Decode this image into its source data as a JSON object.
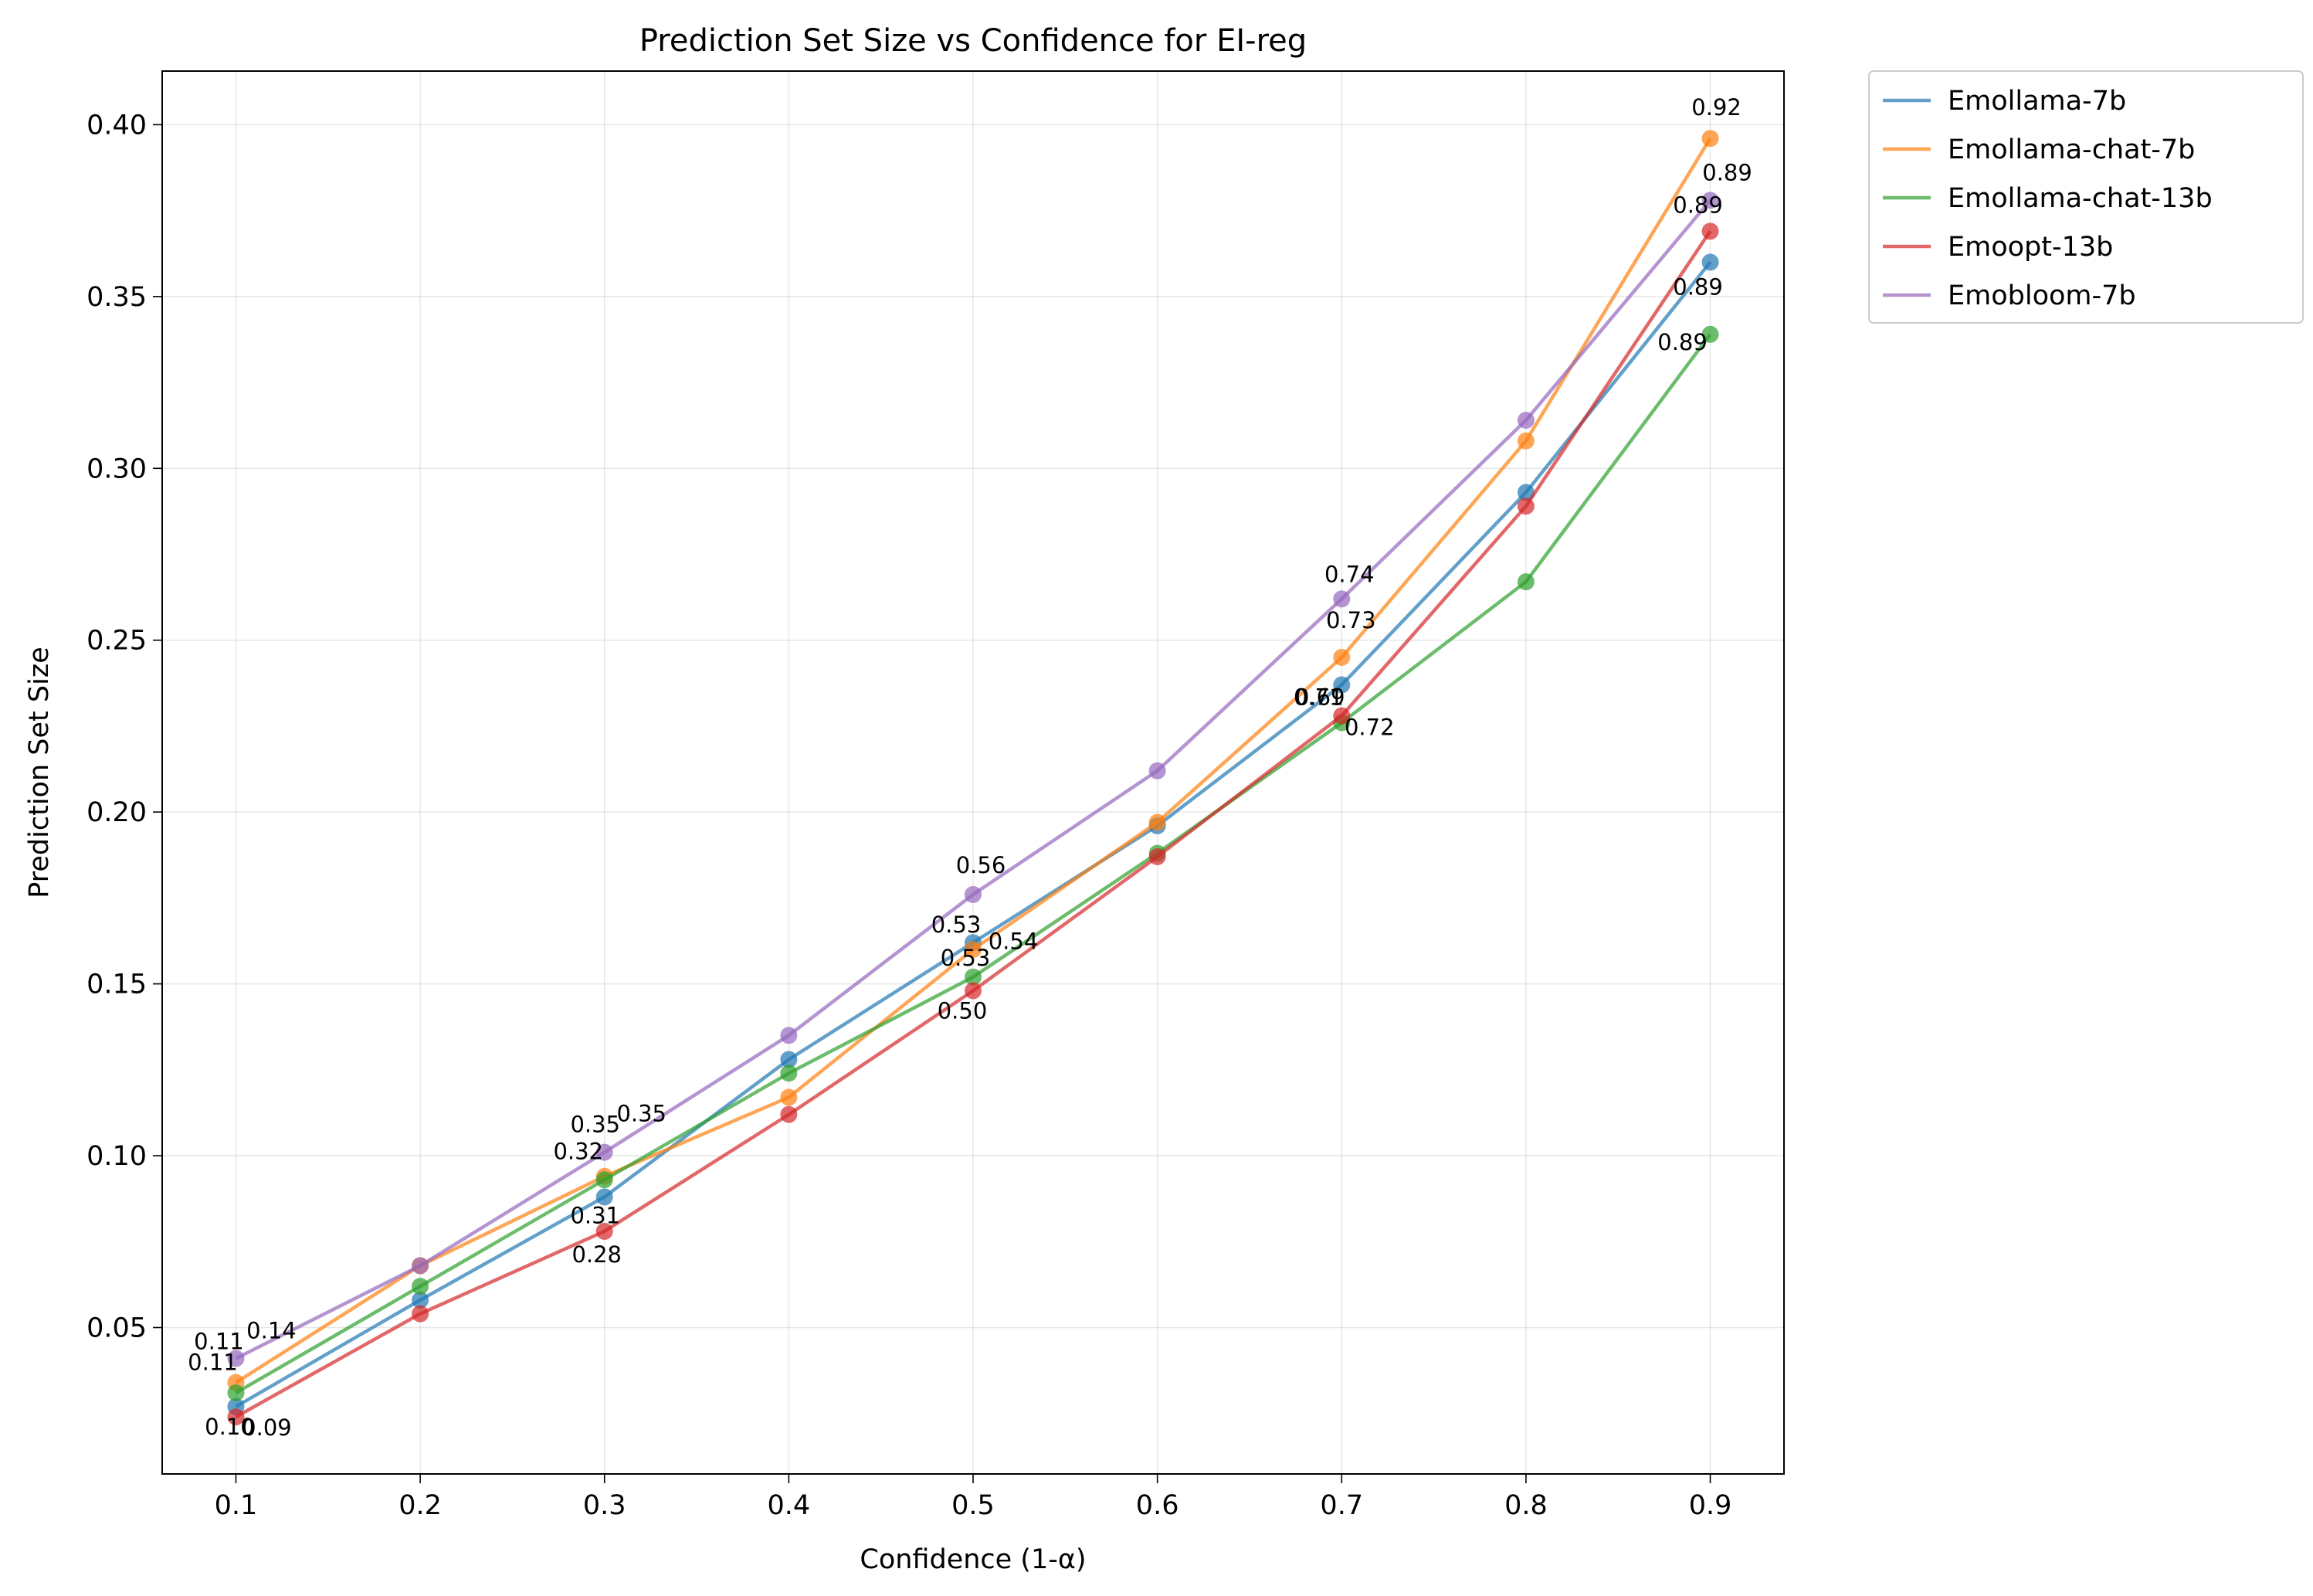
{
  "chart_data": {
    "type": "line",
    "title": "Prediction Set Size vs Confidence for EI-reg",
    "xlabel": "Confidence (1-α)",
    "ylabel": "Prediction Set Size",
    "xlim": [
      0.06,
      0.94
    ],
    "ylim": [
      0.0074,
      0.4156
    ],
    "xticks": [
      0.1,
      0.2,
      0.3,
      0.4,
      0.5,
      0.6,
      0.7,
      0.8,
      0.9
    ],
    "xtick_labels": [
      "0.1",
      "0.2",
      "0.3",
      "0.4",
      "0.5",
      "0.6",
      "0.7",
      "0.8",
      "0.9"
    ],
    "yticks": [
      0.05,
      0.1,
      0.15,
      0.2,
      0.25,
      0.3,
      0.35,
      0.4
    ],
    "ytick_labels": [
      "0.05",
      "0.10",
      "0.15",
      "0.20",
      "0.25",
      "0.30",
      "0.35",
      "0.40"
    ],
    "grid": true,
    "legend_position": "outside-top-right",
    "x": [
      0.1,
      0.2,
      0.3,
      0.4,
      0.5,
      0.6,
      0.7,
      0.8,
      0.9
    ],
    "series": [
      {
        "name": "Emollama-7b",
        "color": "#1f77b4",
        "values": [
          0.027,
          0.058,
          0.088,
          0.128,
          0.162,
          0.196,
          0.237,
          0.293,
          0.36
        ],
        "annotations": [
          {
            "x": 0.1,
            "y": 0.027,
            "text": "0.10"
          },
          {
            "x": 0.3,
            "y": 0.088,
            "text": "0.31"
          },
          {
            "x": 0.5,
            "y": 0.162,
            "text": "0.53"
          },
          {
            "x": 0.7,
            "y": 0.237,
            "text": "0.71"
          },
          {
            "x": 0.9,
            "y": 0.36,
            "text": "0.89"
          }
        ]
      },
      {
        "name": "Emollama-chat-7b",
        "color": "#ff7f0e",
        "values": [
          0.034,
          0.068,
          0.094,
          0.117,
          0.16,
          0.197,
          0.245,
          0.308,
          0.396
        ],
        "annotations": [
          {
            "x": 0.1,
            "y": 0.034,
            "text": "0.11"
          },
          {
            "x": 0.3,
            "y": 0.094,
            "text": "0.32"
          },
          {
            "x": 0.5,
            "y": 0.16,
            "text": "0.53"
          },
          {
            "x": 0.7,
            "y": 0.245,
            "text": "0.73"
          },
          {
            "x": 0.9,
            "y": 0.396,
            "text": "0.92"
          }
        ]
      },
      {
        "name": "Emollama-chat-13b",
        "color": "#2ca02c",
        "values": [
          0.031,
          0.062,
          0.093,
          0.124,
          0.152,
          0.188,
          0.226,
          0.267,
          0.339
        ],
        "annotations": [
          {
            "x": 0.5,
            "y": 0.152,
            "text": "0.54"
          },
          {
            "x": 0.7,
            "y": 0.226,
            "text": "0.72"
          },
          {
            "x": 0.9,
            "y": 0.339,
            "text": "0.89"
          }
        ]
      },
      {
        "name": "Emoopt-13b",
        "color": "#d62728",
        "values": [
          0.024,
          0.054,
          0.078,
          0.112,
          0.148,
          0.187,
          0.228,
          0.289,
          0.369
        ],
        "annotations": [
          {
            "x": 0.1,
            "y": 0.024,
            "text": "0.09"
          },
          {
            "x": 0.3,
            "y": 0.078,
            "text": "0.28"
          },
          {
            "x": 0.5,
            "y": 0.148,
            "text": "0.50"
          },
          {
            "x": 0.7,
            "y": 0.228,
            "text": "0.69"
          },
          {
            "x": 0.9,
            "y": 0.369,
            "text": "0.89"
          }
        ]
      },
      {
        "name": "Emobloom-7b",
        "color": "#9467bd",
        "values": [
          0.041,
          0.068,
          0.101,
          0.135,
          0.176,
          0.212,
          0.262,
          0.314,
          0.378
        ],
        "annotations": [
          {
            "x": 0.1,
            "y": 0.041,
            "text": "0.11"
          },
          {
            "x": 0.1,
            "y": 0.041,
            "text": "0.14"
          },
          {
            "x": 0.3,
            "y": 0.101,
            "text": "0.35"
          },
          {
            "x": 0.3,
            "y": 0.101,
            "text": "0.35"
          },
          {
            "x": 0.5,
            "y": 0.176,
            "text": "0.56"
          },
          {
            "x": 0.7,
            "y": 0.262,
            "text": "0.74"
          },
          {
            "x": 0.9,
            "y": 0.378,
            "text": "0.89"
          }
        ]
      }
    ]
  }
}
